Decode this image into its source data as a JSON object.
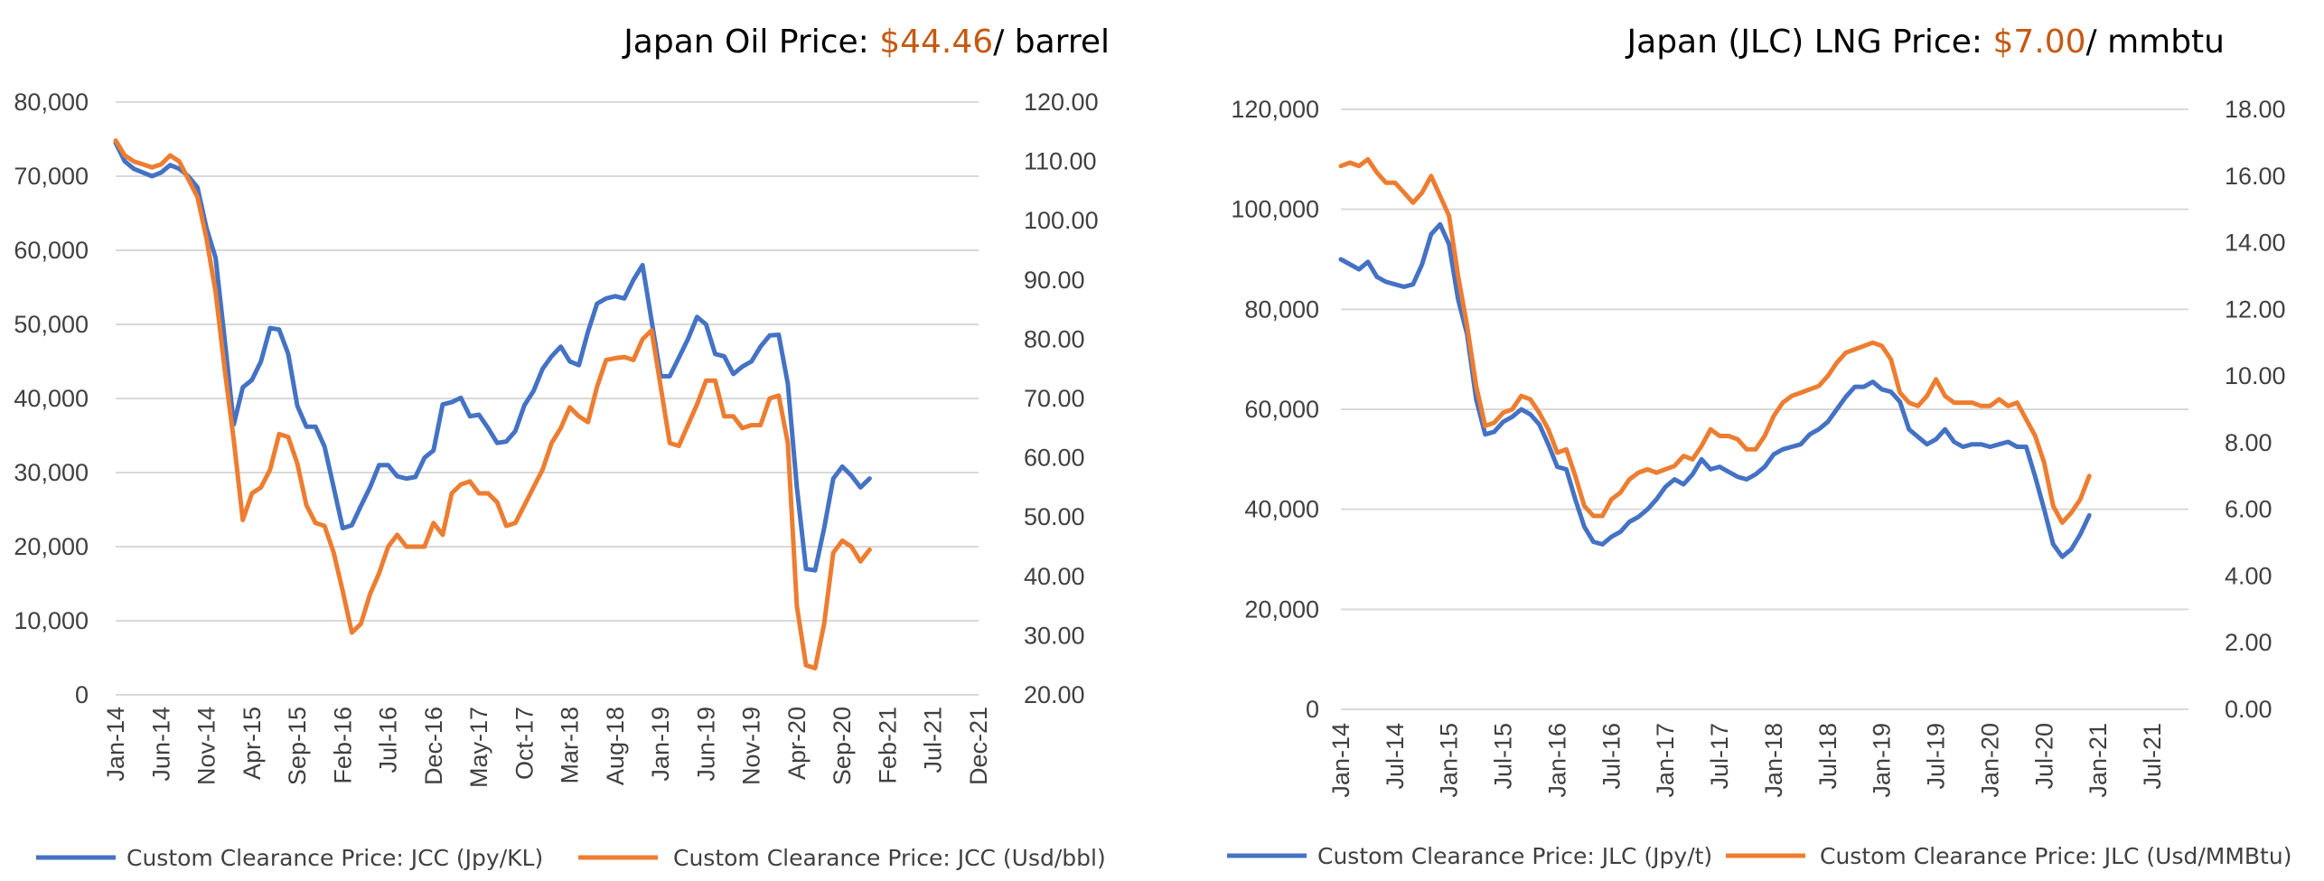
{
  "chart_data": [
    {
      "type": "line",
      "title_prefix": "Japan Oil Price: ",
      "title_value": "$44.46",
      "title_suffix": "/ barrel",
      "colors": {
        "primary": "#4472c4",
        "secondary": "#ed7d31",
        "accent": "#c55a11"
      },
      "x_labels": [
        "Jan-14",
        "Jun-14",
        "Nov-14",
        "Apr-15",
        "Sep-15",
        "Feb-16",
        "Jul-16",
        "Dec-16",
        "May-17",
        "Oct-17",
        "Mar-18",
        "Aug-18",
        "Jan-19",
        "Jun-19",
        "Nov-19",
        "Apr-20",
        "Sep-20",
        "Feb-21",
        "Jul-21",
        "Dec-21"
      ],
      "x_label_month_index": [
        0,
        5,
        10,
        15,
        20,
        25,
        30,
        35,
        40,
        45,
        50,
        55,
        60,
        65,
        70,
        75,
        80,
        85,
        90,
        95
      ],
      "x_range_months": [
        0,
        95
      ],
      "y_left": {
        "min": 0,
        "max": 80000,
        "ticks": [
          "0",
          "10,000",
          "20,000",
          "30,000",
          "40,000",
          "50,000",
          "60,000",
          "70,000",
          "80,000"
        ]
      },
      "y_right": {
        "min": 20,
        "max": 120,
        "ticks": [
          "20.00",
          "30.00",
          "40.00",
          "50.00",
          "60.00",
          "70.00",
          "80.00",
          "90.00",
          "100.00",
          "110.00",
          "120.00"
        ]
      },
      "series": [
        {
          "name": "Custom Clearance Price: JCC (Jpy/KL)",
          "axis": "left",
          "values": [
            74500,
            72000,
            71000,
            70500,
            70000,
            70500,
            71500,
            71000,
            70000,
            68500,
            63000,
            59000,
            48000,
            36500,
            41500,
            42500,
            45000,
            49500,
            49300,
            46000,
            39000,
            36200,
            36200,
            33500,
            28000,
            22500,
            22900,
            25500,
            28000,
            31000,
            31000,
            29500,
            29200,
            29400,
            32000,
            33000,
            39200,
            39500,
            40100,
            37600,
            37800,
            36000,
            34000,
            34200,
            35600,
            39100,
            41000,
            44000,
            45700,
            47000,
            45000,
            44500,
            49000,
            52800,
            53500,
            53800,
            53500,
            56000,
            58000,
            50500,
            43000,
            43000,
            45500,
            48000,
            51000,
            50000,
            46000,
            45700,
            43300,
            44300,
            45000,
            47000,
            48500,
            48600,
            42000,
            28000,
            17000,
            16800,
            22500,
            29200,
            30800,
            29600,
            28000,
            29200
          ]
        },
        {
          "name": "Custom Clearance Price: JCC (Usd/bbl)",
          "axis": "right",
          "values": [
            113.5,
            111,
            110,
            109.5,
            109,
            109.5,
            111,
            110,
            107,
            104,
            97,
            88,
            75,
            63,
            49.5,
            54,
            55,
            58,
            64,
            63.5,
            59,
            52,
            49,
            48.5,
            44,
            37.5,
            30.5,
            32,
            37,
            40.5,
            45,
            47,
            45,
            45,
            45,
            49,
            47,
            54,
            55.5,
            56,
            54,
            54,
            52.5,
            48.5,
            49,
            52,
            55,
            58,
            62.5,
            65,
            68.5,
            67,
            66,
            72,
            76.5,
            76.8,
            77,
            76.5,
            80,
            81.5,
            72,
            62.5,
            62,
            65.5,
            69,
            73,
            73,
            67,
            67,
            65,
            65.5,
            65.5,
            70,
            70.5,
            62.5,
            35,
            25,
            24.5,
            32,
            44,
            46,
            45,
            42.5,
            44.5
          ]
        }
      ]
    },
    {
      "type": "line",
      "title_prefix": "Japan (JLC) LNG Price: ",
      "title_value": "$7.00",
      "title_suffix": "/ mmbtu",
      "colors": {
        "primary": "#4472c4",
        "secondary": "#ed7d31",
        "accent": "#c55a11"
      },
      "x_labels": [
        "Jan-14",
        "Jul-14",
        "Jan-15",
        "Jul-15",
        "Jan-16",
        "Jul-16",
        "Jan-17",
        "Jul-17",
        "Jan-18",
        "Jul-18",
        "Jan-19",
        "Jul-19",
        "Jan-20",
        "Jul-20",
        "Jan-21",
        "Jul-21"
      ],
      "x_label_month_index": [
        0,
        6,
        12,
        18,
        24,
        30,
        36,
        42,
        48,
        54,
        60,
        66,
        72,
        78,
        84,
        90
      ],
      "x_range_months": [
        0,
        94
      ],
      "y_left": {
        "min": 0,
        "max": 120000,
        "ticks": [
          "0",
          "20,000",
          "40,000",
          "60,000",
          "80,000",
          "100,000",
          "120,000"
        ]
      },
      "y_right": {
        "min": 0,
        "max": 18,
        "ticks": [
          "0.00",
          "2.00",
          "4.00",
          "6.00",
          "8.00",
          "10.00",
          "12.00",
          "14.00",
          "16.00",
          "18.00"
        ]
      },
      "series": [
        {
          "name": "Custom Clearance Price: JLC (Jpy/t)",
          "axis": "left",
          "values": [
            90000,
            89000,
            88000,
            89500,
            86500,
            85500,
            85000,
            84500,
            85000,
            89000,
            95000,
            97000,
            93000,
            82000,
            75000,
            62000,
            55000,
            55500,
            57500,
            58500,
            60000,
            59000,
            57000,
            53000,
            48500,
            48000,
            42000,
            36500,
            33500,
            33000,
            34500,
            35500,
            37500,
            38500,
            40000,
            42000,
            44500,
            46000,
            45000,
            47000,
            50000,
            48000,
            48500,
            47500,
            46500,
            46000,
            47000,
            48500,
            51000,
            52000,
            52500,
            53000,
            55000,
            56000,
            57500,
            60000,
            62500,
            64500,
            64500,
            65500,
            64000,
            63500,
            61500,
            56000,
            54500,
            53000,
            54000,
            56000,
            53500,
            52500,
            53000,
            53000,
            52500,
            53000,
            53500,
            52500,
            52500,
            46500,
            40000,
            33000,
            30500,
            32000,
            35000,
            38800
          ]
        },
        {
          "name": "Custom Clearance Price: JLC (Usd/MMBtu)",
          "axis": "right",
          "values": [
            16.3,
            16.4,
            16.3,
            16.5,
            16.1,
            15.8,
            15.8,
            15.5,
            15.2,
            15.5,
            16,
            15.4,
            14.8,
            13,
            11.5,
            9.7,
            8.5,
            8.6,
            8.9,
            9,
            9.4,
            9.3,
            8.9,
            8.4,
            7.7,
            7.8,
            7,
            6.1,
            5.8,
            5.8,
            6.3,
            6.5,
            6.9,
            7.1,
            7.2,
            7.1,
            7.2,
            7.3,
            7.6,
            7.5,
            7.9,
            8.4,
            8.2,
            8.2,
            8.1,
            7.8,
            7.8,
            8.2,
            8.8,
            9.2,
            9.4,
            9.5,
            9.6,
            9.7,
            10,
            10.4,
            10.7,
            10.8,
            10.9,
            11,
            10.9,
            10.5,
            9.5,
            9.2,
            9.1,
            9.4,
            9.9,
            9.4,
            9.2,
            9.2,
            9.2,
            9.1,
            9.1,
            9.3,
            9.1,
            9.2,
            8.7,
            8.2,
            7.4,
            6.1,
            5.6,
            5.9,
            6.3,
            7
          ]
        }
      ]
    }
  ]
}
